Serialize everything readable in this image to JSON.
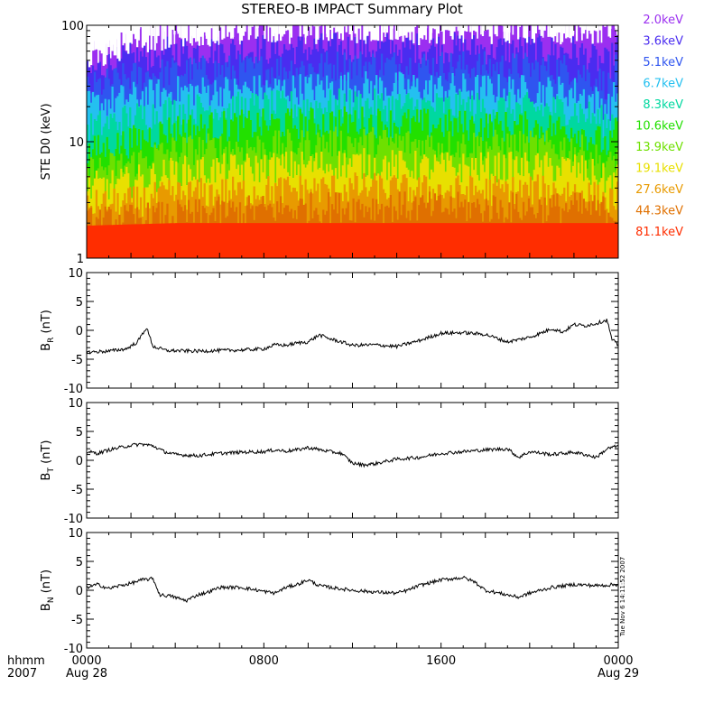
{
  "title": "STEREO-B IMPACT Summary Plot",
  "timestamp": "Tue Nov  6 14:11:52 2007",
  "time_axis": {
    "corner_label_line1": "hhmm",
    "corner_label_line2": "2007",
    "ticks": [
      {
        "hour": 0,
        "label": "0000",
        "sublabel": "Aug 28"
      },
      {
        "hour": 8,
        "label": "0800",
        "sublabel": ""
      },
      {
        "hour": 16,
        "label": "1600",
        "sublabel": ""
      },
      {
        "hour": 24,
        "label": "0000",
        "sublabel": "Aug 29"
      }
    ],
    "range_hours": [
      0,
      24
    ]
  },
  "chart_data": [
    {
      "type": "area",
      "panel": "ste",
      "ylabel": "STE D0 (keV)",
      "yscale": "log",
      "ylim": [
        1,
        100
      ],
      "y_ticks": [
        {
          "value": 1,
          "label": "1"
        },
        {
          "value": 10,
          "label": "10"
        },
        {
          "value": 100,
          "label": "100"
        }
      ],
      "legend_placement": "right",
      "series": [
        {
          "name": "2.0keV",
          "color": "#9b2ff0",
          "level_profile": [
            [
              0,
              50
            ],
            [
              2,
              75
            ],
            [
              4,
              90
            ],
            [
              8,
              95
            ],
            [
              16,
              95
            ],
            [
              22,
              95
            ],
            [
              24,
              95
            ]
          ]
        },
        {
          "name": "3.6keV",
          "color": "#4a2cf0",
          "level_profile": [
            [
              0,
              38
            ],
            [
              2,
              52
            ],
            [
              4,
              60
            ],
            [
              8,
              62
            ],
            [
              12,
              64
            ],
            [
              16,
              64
            ],
            [
              22,
              60
            ],
            [
              23.6,
              45
            ],
            [
              24,
              70
            ]
          ]
        },
        {
          "name": "5.1keV",
          "color": "#2f55f0",
          "level_profile": [
            [
              0,
              28
            ],
            [
              2,
              36
            ],
            [
              4,
              40
            ],
            [
              8,
              42
            ],
            [
              12,
              46
            ],
            [
              16,
              45
            ],
            [
              22,
              42
            ],
            [
              23.6,
              30
            ],
            [
              24,
              45
            ]
          ]
        },
        {
          "name": "6.7keV",
          "color": "#24c0f0",
          "level_profile": [
            [
              0,
              20
            ],
            [
              2,
              24
            ],
            [
              4,
              27
            ],
            [
              8,
              28
            ],
            [
              12,
              30
            ],
            [
              16,
              29
            ],
            [
              22,
              27
            ],
            [
              23.6,
              20
            ],
            [
              24,
              28
            ]
          ]
        },
        {
          "name": "8.3keV",
          "color": "#00d8a0",
          "level_profile": [
            [
              0,
              13
            ],
            [
              2,
              16
            ],
            [
              4,
              19
            ],
            [
              8,
              20
            ],
            [
              12,
              21
            ],
            [
              16,
              20
            ],
            [
              22,
              19
            ],
            [
              23.6,
              14
            ],
            [
              24,
              20
            ]
          ]
        },
        {
          "name": "10.6keV",
          "color": "#22e000",
          "level_profile": [
            [
              0,
              8
            ],
            [
              2,
              10
            ],
            [
              4,
              13
            ],
            [
              8,
              14
            ],
            [
              12,
              15
            ],
            [
              16,
              14
            ],
            [
              22,
              13
            ],
            [
              23.6,
              9
            ],
            [
              24,
              13
            ]
          ]
        },
        {
          "name": "13.9keV",
          "color": "#6ee000",
          "level_profile": [
            [
              0,
              5.5
            ],
            [
              2,
              6.5
            ],
            [
              4,
              8.5
            ],
            [
              8,
              9
            ],
            [
              12,
              10
            ],
            [
              16,
              9.5
            ],
            [
              22,
              9
            ],
            [
              23.6,
              6
            ],
            [
              24,
              8
            ]
          ]
        },
        {
          "name": "19.1keV",
          "color": "#e8e000",
          "level_profile": [
            [
              0,
              4
            ],
            [
              2,
              4.5
            ],
            [
              4,
              5.5
            ],
            [
              8,
              6
            ],
            [
              12,
              6.5
            ],
            [
              16,
              6
            ],
            [
              22,
              6
            ],
            [
              23.6,
              4.5
            ],
            [
              24,
              5
            ]
          ]
        },
        {
          "name": "27.6keV",
          "color": "#e89a00",
          "level_profile": [
            [
              0,
              2.8
            ],
            [
              2,
              3
            ],
            [
              4,
              3.5
            ],
            [
              8,
              3.8
            ],
            [
              12,
              4
            ],
            [
              16,
              3.8
            ],
            [
              22,
              3.8
            ],
            [
              23.6,
              3
            ],
            [
              24,
              3.5
            ]
          ]
        },
        {
          "name": "44.3keV",
          "color": "#e07000",
          "level_profile": [
            [
              0,
              2
            ],
            [
              4,
              2.3
            ],
            [
              8,
              2.6
            ],
            [
              12,
              2.8
            ],
            [
              16,
              2.7
            ],
            [
              22,
              2.7
            ],
            [
              24,
              2.5
            ]
          ]
        },
        {
          "name": "81.1keV",
          "color": "#ff2d00",
          "level_profile": [
            [
              0,
              1.9
            ],
            [
              4,
              2
            ],
            [
              8,
              2
            ],
            [
              16,
              2
            ],
            [
              24,
              2
            ]
          ]
        }
      ]
    },
    {
      "type": "line",
      "panel": "br",
      "ylabel": "B",
      "ylabel_sub": "R",
      "yunit": "(nT)",
      "ylim": [
        -10,
        10
      ],
      "y_ticks": [
        {
          "value": 10,
          "label": "10"
        },
        {
          "value": 5,
          "label": "5"
        },
        {
          "value": 0,
          "label": "0"
        },
        {
          "value": -5,
          "label": "-5"
        },
        {
          "value": -10,
          "label": "-10"
        }
      ],
      "series": [
        {
          "x": [
            0,
            1,
            1.8,
            2.3,
            2.7,
            3,
            3.6,
            5,
            7,
            8,
            8.5,
            9,
            9.5,
            10,
            10.5,
            11,
            11.5,
            12,
            13,
            14,
            15,
            16,
            17,
            18,
            19,
            20,
            20.5,
            21,
            21.5,
            22,
            22.5,
            23,
            23.5,
            23.7,
            24
          ],
          "y": [
            -3.8,
            -3.6,
            -3.2,
            -2,
            0.5,
            -2.8,
            -3.5,
            -3.6,
            -3.4,
            -3.2,
            -2.5,
            -2.6,
            -2.2,
            -2,
            -0.8,
            -1.5,
            -2,
            -2.6,
            -2.5,
            -2.8,
            -1.8,
            -0.5,
            -0.4,
            -0.7,
            -2,
            -1.2,
            -0.5,
            0.3,
            -0.3,
            1,
            0.8,
            1.2,
            1.8,
            -1.5,
            -2.6
          ]
        }
      ]
    },
    {
      "type": "line",
      "panel": "bt",
      "ylabel": "B",
      "ylabel_sub": "T",
      "yunit": "(nT)",
      "ylim": [
        -10,
        10
      ],
      "y_ticks": [
        {
          "value": 10,
          "label": "10"
        },
        {
          "value": 5,
          "label": "5"
        },
        {
          "value": 0,
          "label": "0"
        },
        {
          "value": -5,
          "label": "-5"
        },
        {
          "value": -10,
          "label": "-10"
        }
      ],
      "series": [
        {
          "x": [
            0,
            0.5,
            1,
            1.5,
            2,
            2.5,
            3,
            3.5,
            4,
            5,
            6,
            7,
            8,
            8.5,
            9,
            9.5,
            10,
            11,
            11.5,
            12,
            12.5,
            13,
            14,
            15,
            16,
            17,
            18,
            19,
            19.5,
            20,
            21,
            22,
            22.5,
            23,
            23.5,
            24
          ],
          "y": [
            1.5,
            1.2,
            1.8,
            2.2,
            2.6,
            2.8,
            2.5,
            1.5,
            1,
            0.8,
            1.2,
            1.4,
            1.5,
            1.8,
            1.6,
            1.8,
            2.2,
            1.5,
            1.2,
            -0.5,
            -0.8,
            -0.6,
            0.2,
            0.5,
            1.2,
            1.5,
            1.8,
            2,
            0.5,
            1.5,
            1,
            1.4,
            1,
            0.5,
            2,
            2.5
          ]
        }
      ]
    },
    {
      "type": "line",
      "panel": "bn",
      "ylabel": "B",
      "ylabel_sub": "N",
      "yunit": "(nT)",
      "ylim": [
        -10,
        10
      ],
      "y_ticks": [
        {
          "value": 10,
          "label": "10"
        },
        {
          "value": 5,
          "label": "5"
        },
        {
          "value": 0,
          "label": "0"
        },
        {
          "value": -5,
          "label": "-5"
        },
        {
          "value": -10,
          "label": "-10"
        }
      ],
      "series": [
        {
          "x": [
            0,
            0.5,
            1,
            1.5,
            2,
            2.5,
            3,
            3.3,
            3.8,
            4.5,
            5,
            5.5,
            6,
            7,
            8,
            8.5,
            9,
            9.5,
            10,
            10.5,
            11,
            12,
            13,
            14,
            14.5,
            15,
            16,
            17,
            17.5,
            18,
            19,
            19.5,
            20,
            21,
            22,
            23,
            24
          ],
          "y": [
            0.5,
            1,
            0.3,
            0.8,
            1.2,
            1.8,
            2,
            -0.8,
            -1,
            -1.8,
            -0.8,
            -0.3,
            0.5,
            0.5,
            -0.2,
            -0.5,
            0.5,
            1,
            1.8,
            0.8,
            0.5,
            0,
            -0.3,
            -0.5,
            0,
            0.8,
            1.8,
            2.2,
            1.5,
            0,
            -0.8,
            -1.2,
            -0.5,
            0.5,
            1,
            0.8,
            1
          ]
        }
      ]
    }
  ]
}
